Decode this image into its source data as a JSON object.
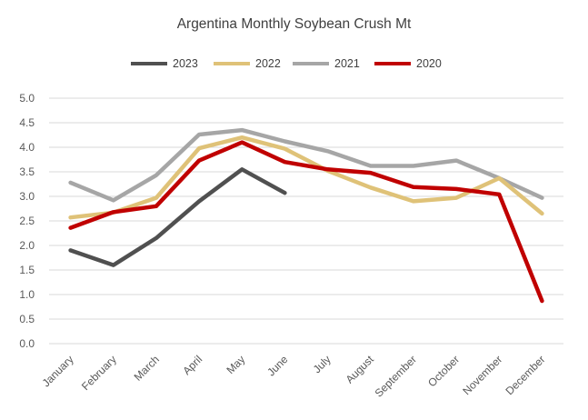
{
  "chart_data": {
    "type": "line",
    "title": "Argentina Monthly Soybean Crush Mt",
    "xlabel": "",
    "ylabel": "",
    "categories": [
      "January",
      "February",
      "March",
      "April",
      "May",
      "June",
      "July",
      "August",
      "September",
      "October",
      "November",
      "December"
    ],
    "ylim": [
      0,
      5
    ],
    "yticks": [
      "0.0",
      "0.5",
      "1.0",
      "1.5",
      "2.0",
      "2.5",
      "3.0",
      "3.5",
      "4.0",
      "4.5",
      "5.0"
    ],
    "grid": true,
    "legend_position": "top",
    "series": [
      {
        "name": "2023",
        "color": "#505050",
        "values": [
          1.9,
          1.6,
          2.15,
          2.9,
          3.55,
          3.07,
          null,
          null,
          null,
          null,
          null,
          null
        ]
      },
      {
        "name": "2022",
        "color": "#dfc278",
        "values": [
          2.57,
          2.67,
          2.97,
          3.98,
          4.2,
          3.97,
          3.52,
          3.18,
          2.9,
          2.97,
          3.37,
          2.65
        ]
      },
      {
        "name": "2021",
        "color": "#a6a6a6",
        "values": [
          3.28,
          2.92,
          3.43,
          4.26,
          4.35,
          4.12,
          3.92,
          3.62,
          3.62,
          3.73,
          3.37,
          2.97
        ]
      },
      {
        "name": "2020",
        "color": "#c00000",
        "values": [
          2.36,
          2.68,
          2.8,
          3.73,
          4.1,
          3.7,
          3.55,
          3.48,
          3.19,
          3.15,
          3.04,
          0.87
        ]
      }
    ]
  }
}
